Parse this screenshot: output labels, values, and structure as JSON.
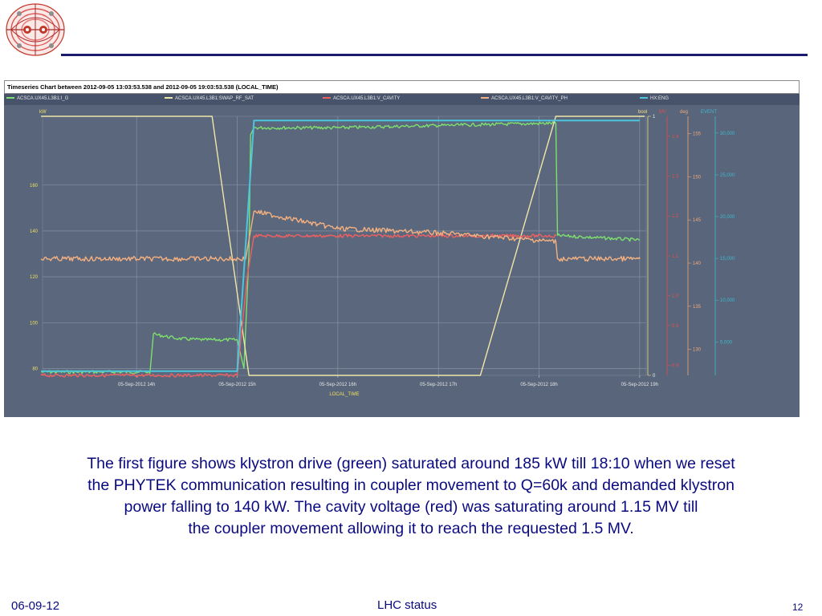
{
  "slide": {
    "caption_lines": [
      "The first figure shows klystron drive (green) saturated around 185 kW till 18:10 when we reset",
      "the PHYTEK communication resulting in coupler movement to Q=60k and demanded klystron",
      "power falling to 140 kW. The cavity voltage (red) was saturating around 1.15 MV till",
      "the coupler movement allowing it to reach the requested 1.5 MV."
    ],
    "footer_date": "06-09-12",
    "footer_title": "LHC status",
    "page_number": "12",
    "colors": {
      "title_blue": "#0a0a80",
      "rule": "#1a1a6e"
    }
  },
  "chart_data": {
    "type": "line",
    "title": "Timeseries Chart between 2012-09-05 13:03:53.538 and 2012-09-05 19:03:53.538 (LOCAL_TIME)",
    "xlabel": "LOCAL_TIME",
    "x_ticks": [
      "05-Sep-2012 14h",
      "05-Sep-2012 15h",
      "05-Sep-2012 16h",
      "05-Sep-2012 17h",
      "05-Sep-2012 18h",
      "05-Sep-2012 19h"
    ],
    "xlim": [
      "2012-09-05 13:03:53",
      "2012-09-05 19:03:53"
    ],
    "grid": true,
    "background": "#58657a",
    "axes": [
      {
        "id": "kw",
        "label": "kW",
        "ticks": [
          "80",
          "100",
          "120",
          "140",
          "160"
        ],
        "ylim": [
          77,
          190
        ],
        "side": "left",
        "color": "#f0e060"
      },
      {
        "id": "bool",
        "label": "bool",
        "ticks": [
          "0",
          "1"
        ],
        "ylim": [
          0,
          1
        ],
        "side": "right",
        "color": "#f0e080"
      },
      {
        "id": "mv",
        "label": "MV",
        "ticks": [
          "0.9",
          "0.9",
          "1.0",
          "1.1",
          "1.2",
          "1.3",
          "1.4"
        ],
        "ylim": [
          0.8,
          1.45
        ],
        "side": "right",
        "color": "#e05050"
      },
      {
        "id": "deg",
        "label": "deg",
        "ticks": [
          "130",
          "135",
          "140",
          "145",
          "150",
          "155"
        ],
        "ylim": [
          127,
          157
        ],
        "side": "right",
        "color": "#f0a878"
      },
      {
        "id": "event",
        "label": "EVENT",
        "ticks": [
          "5,000",
          "10,000",
          "15,000",
          "20,000",
          "25,000",
          "30,000"
        ],
        "ylim": [
          1000,
          32000
        ],
        "side": "right",
        "color": "#40b8d0"
      }
    ],
    "series": [
      {
        "name": "ACSCA.UX45.L3B1:I_G",
        "color": "#7ee06e",
        "axis": "kw",
        "points": [
          [
            "13:03",
            78.5
          ],
          [
            "14:00",
            78.5
          ],
          [
            "14:08",
            78.5
          ],
          [
            "14:10",
            95
          ],
          [
            "14:25",
            93
          ],
          [
            "14:40",
            92.5
          ],
          [
            "15:00",
            92.5
          ],
          [
            "15:04",
            80
          ],
          [
            "15:07",
            130
          ],
          [
            "15:08",
            182
          ],
          [
            "15:10",
            185
          ],
          [
            "16:00",
            185
          ],
          [
            "17:00",
            186
          ],
          [
            "18:10",
            187
          ],
          [
            "18:11",
            138
          ],
          [
            "19:00",
            136
          ]
        ]
      },
      {
        "name": "ACSCA.UX45.L3B1:SWAP_RF_SAT",
        "color": "#f0e6a8",
        "axis": "bool",
        "points": [
          [
            "13:03",
            1
          ],
          [
            "14:45",
            1
          ],
          [
            "15:07",
            0
          ],
          [
            "17:25",
            0
          ],
          [
            "18:10",
            1
          ],
          [
            "19:03",
            1
          ]
        ]
      },
      {
        "name": "ACSCA.UX45.L3B1:V_CAVITY",
        "color": "#f06060",
        "axis": "mv",
        "points": [
          [
            "13:03",
            0.8
          ],
          [
            "15:00",
            0.8
          ],
          [
            "15:06",
            1.05
          ],
          [
            "15:10",
            1.15
          ],
          [
            "16:00",
            1.15
          ],
          [
            "17:00",
            1.15
          ],
          [
            "18:10",
            1.15
          ]
        ]
      },
      {
        "name": "ACSCA.UX45.L3B1:V_CAVITY_PH",
        "color": "#f5b080",
        "axis": "deg",
        "points": [
          [
            "13:03",
            140.5
          ],
          [
            "15:05",
            140.5
          ],
          [
            "15:10",
            146
          ],
          [
            "16:00",
            144
          ],
          [
            "17:00",
            143.5
          ],
          [
            "18:10",
            142.5
          ],
          [
            "18:11",
            140.5
          ],
          [
            "19:00",
            140.5
          ]
        ]
      },
      {
        "name": "HX:ENG",
        "color": "#4cc6dc",
        "axis": "event",
        "points": [
          [
            "13:03",
            1500
          ],
          [
            "15:00",
            1500
          ],
          [
            "15:10",
            31500
          ],
          [
            "19:00",
            31500
          ]
        ]
      }
    ]
  }
}
